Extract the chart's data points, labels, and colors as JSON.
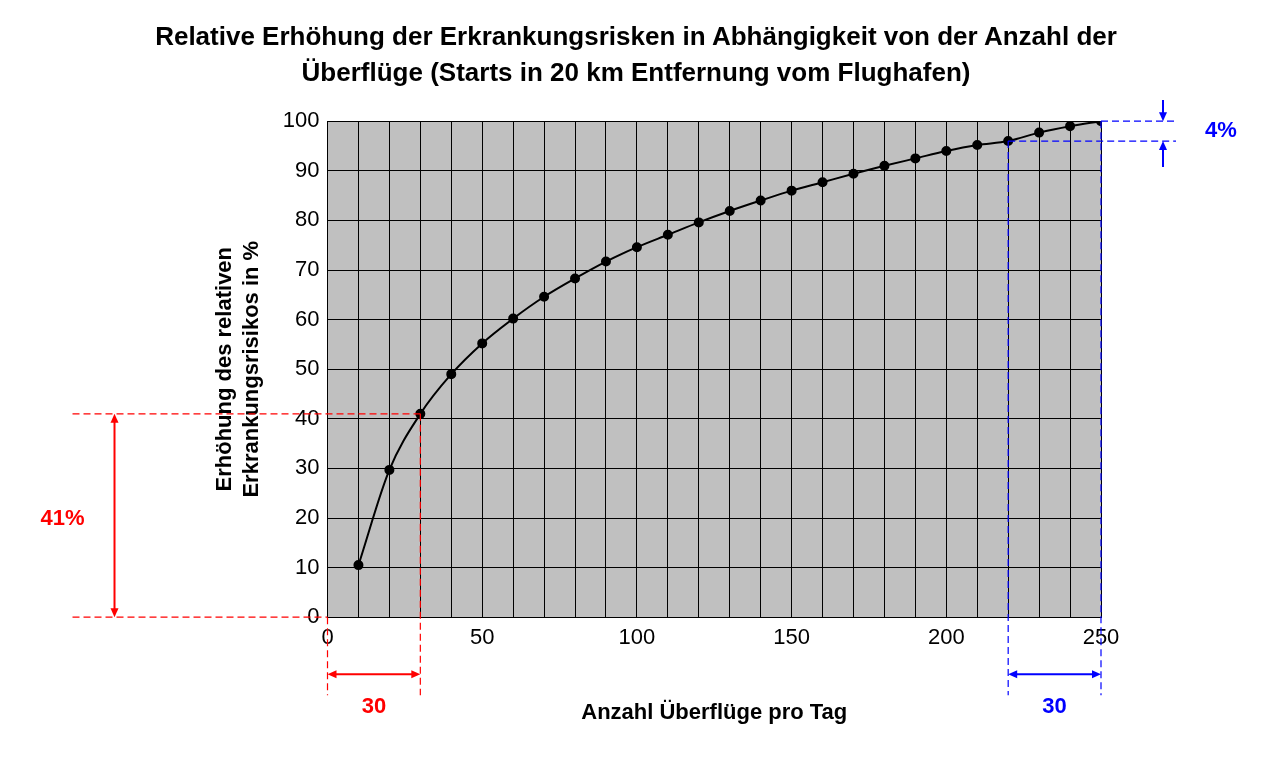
{
  "chart_data": {
    "type": "line",
    "title": "Relative Erhöhung der Erkrankungsrisken in Abhängigkeit von der Anzahl der Überflüge (Starts in 20 km Entfernung vom Flughafen)",
    "xlabel": "Anzahl Überflüge pro Tag",
    "ylabel": "Erhöhung des relativen Erkrankungsrisikos in %",
    "series": [
      {
        "color": "#000000",
        "x": [
          10,
          20,
          30,
          40,
          50,
          60,
          70,
          80,
          90,
          100,
          110,
          120,
          130,
          140,
          150,
          160,
          170,
          180,
          190,
          200,
          210,
          220,
          230,
          240,
          250
        ],
        "values": [
          10.5,
          29.7,
          41,
          49,
          55.2,
          60.2,
          64.6,
          68.3,
          71.7,
          74.6,
          77.1,
          79.6,
          81.9,
          84,
          86,
          87.7,
          89.4,
          91,
          92.5,
          94,
          95.2,
          96,
          97.7,
          99,
          100
        ]
      }
    ],
    "xlim": [
      0,
      250
    ],
    "xticks": [
      0,
      {
        "value": 10,
        "label": null
      },
      {
        "value": 20,
        "label": null
      },
      {
        "value": 30,
        "label": null
      },
      {
        "value": 40,
        "label": null
      },
      50,
      {
        "value": 60,
        "label": null
      },
      {
        "value": 70,
        "label": null
      },
      {
        "value": 80,
        "label": null
      },
      {
        "value": 90,
        "label": null
      },
      100,
      {
        "value": 110,
        "label": null
      },
      {
        "value": 120,
        "label": null
      },
      {
        "value": 130,
        "label": null
      },
      {
        "value": 140,
        "label": null
      },
      150,
      {
        "value": 160,
        "label": null
      },
      {
        "value": 170,
        "label": null
      },
      {
        "value": 180,
        "label": null
      },
      {
        "value": 190,
        "label": null
      },
      200,
      {
        "value": 210,
        "label": null
      },
      {
        "value": 220,
        "label": null
      },
      {
        "value": 230,
        "label": null
      },
      {
        "value": 240,
        "label": null
      },
      250
    ],
    "ylim": [
      0,
      100
    ],
    "yticks": [
      0,
      10,
      20,
      30,
      40,
      50,
      60,
      70,
      80,
      90,
      100
    ],
    "grid": true,
    "legend": false,
    "marker": "circle",
    "line_style": "solid",
    "ref_lines": [
      {
        "axis": "x",
        "value": 30,
        "label": "30",
        "color": "#ff0000",
        "line_style": "dashed"
      },
      {
        "axis": "y",
        "value": 41,
        "label": "41%",
        "color": "#ff0000",
        "line_style": "dashed"
      },
      {
        "axis": "x",
        "value": 220,
        "color": "#0000ff",
        "line_style": "dashed"
      },
      {
        "axis": "y",
        "value": 96,
        "color": "#0000ff",
        "line_style": "dashed"
      }
    ],
    "annotations": [
      "30",
      "4%"
    ]
  }
}
